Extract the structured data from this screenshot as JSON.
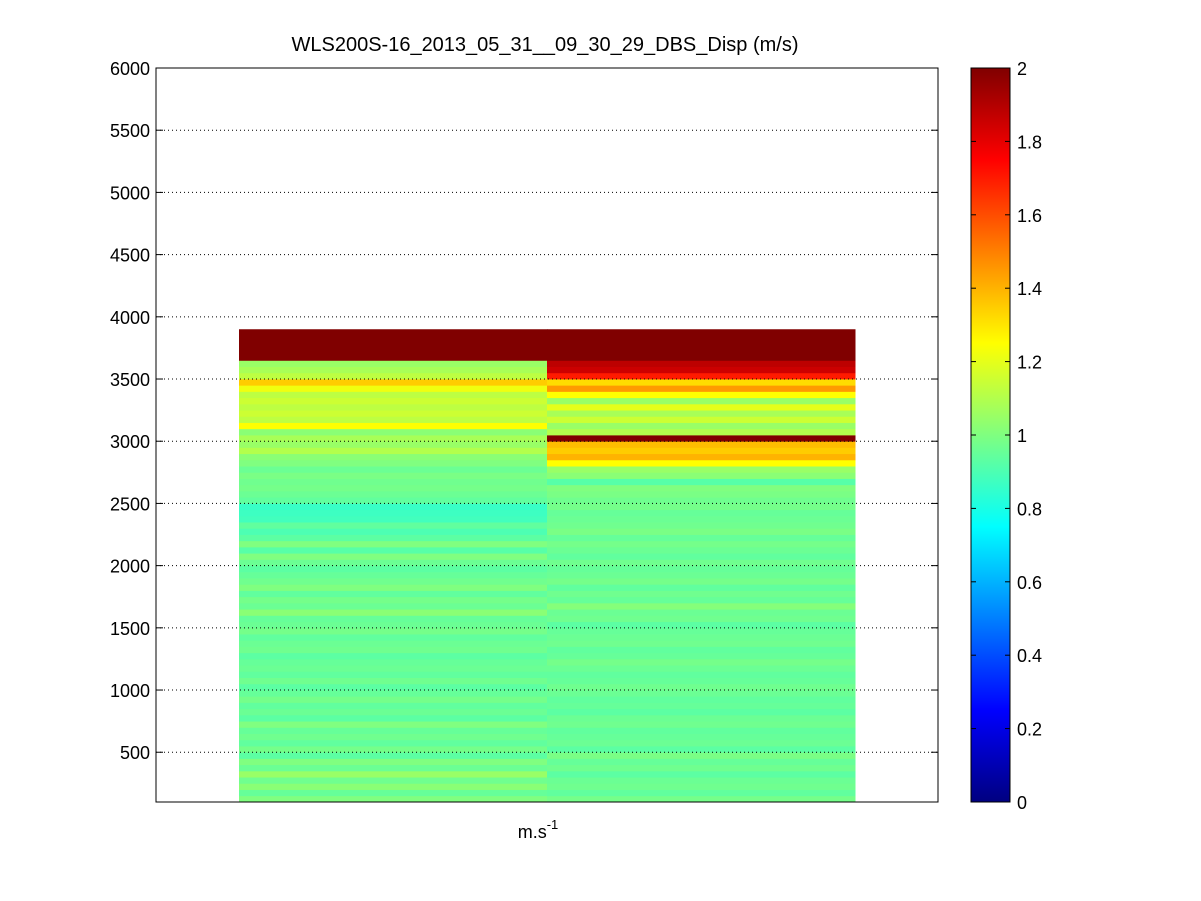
{
  "chart_data": {
    "type": "heatmap",
    "title": "WLS200S-16_2013_05_31__09_30_29_DBS_Disp (m/s)",
    "xlabel_base": "m.s",
    "xlabel_exp": "-1",
    "ylabel": "",
    "ylim": [
      100,
      6000
    ],
    "yticks": [
      500,
      1000,
      1500,
      2000,
      2500,
      3000,
      3500,
      4000,
      4500,
      5000,
      5500,
      6000
    ],
    "ytick_labels": [
      "500",
      "1000",
      "1500",
      "2000",
      "2500",
      "3000",
      "3500",
      "4000",
      "4500",
      "5000",
      "5500",
      "6000"
    ],
    "grid": "horizontal dotted",
    "colormap": "jet",
    "colorbar": {
      "range": [
        0,
        2
      ],
      "ticks": [
        0,
        0.2,
        0.4,
        0.6,
        0.8,
        1,
        1.2,
        1.4,
        1.6,
        1.8,
        2
      ],
      "tick_labels": [
        "0",
        "0.2",
        "0.4",
        "0.6",
        "0.8",
        "1",
        "1.2",
        "1.4",
        "1.6",
        "1.8",
        "2"
      ]
    },
    "column_count": 2,
    "altitude_bottom": 100,
    "altitude_step": 50,
    "columns": [
      {
        "values": [
          1.0,
          0.95,
          1.02,
          0.97,
          1.05,
          0.96,
          1.0,
          0.93,
          0.98,
          0.94,
          0.97,
          0.95,
          1.0,
          0.93,
          0.96,
          0.94,
          0.98,
          0.95,
          0.93,
          0.97,
          0.94,
          0.96,
          0.95,
          0.93,
          0.97,
          0.96,
          0.94,
          0.98,
          0.96,
          0.95,
          1.02,
          0.96,
          0.98,
          0.94,
          1.0,
          0.97,
          0.95,
          0.93,
          0.96,
          1.0,
          0.92,
          1.0,
          0.93,
          0.9,
          0.94,
          0.88,
          0.87,
          0.86,
          0.94,
          0.96,
          0.98,
          0.97,
          0.99,
          0.96,
          1.0,
          1.02,
          1.1,
          1.05,
          1.08,
          1.02,
          1.25,
          1.12,
          1.15,
          1.12,
          1.15,
          1.12,
          1.22,
          1.35,
          1.12,
          1.08,
          1.05,
          2.0,
          2.0,
          2.0,
          2.0,
          2.0
        ]
      },
      {
        "values": [
          0.98,
          0.94,
          0.97,
          0.96,
          0.93,
          0.97,
          0.95,
          0.99,
          0.93,
          0.96,
          0.95,
          0.94,
          0.97,
          0.96,
          0.93,
          0.95,
          0.94,
          0.96,
          0.97,
          0.95,
          0.94,
          0.96,
          0.98,
          0.95,
          0.94,
          0.97,
          0.96,
          0.95,
          0.93,
          0.97,
          0.96,
          1.01,
          0.95,
          0.97,
          0.94,
          0.98,
          0.96,
          0.95,
          0.97,
          0.94,
          0.96,
          0.98,
          0.95,
          0.99,
          0.97,
          0.96,
          0.95,
          0.98,
          0.97,
          0.99,
          1.0,
          0.92,
          1.02,
          1.05,
          1.25,
          1.4,
          1.35,
          1.38,
          2.0,
          1.1,
          1.05,
          1.15,
          1.08,
          1.2,
          1.05,
          1.25,
          1.45,
          1.32,
          1.7,
          1.85,
          1.88,
          2.0,
          2.0,
          2.0,
          2.0,
          2.0
        ]
      }
    ]
  }
}
